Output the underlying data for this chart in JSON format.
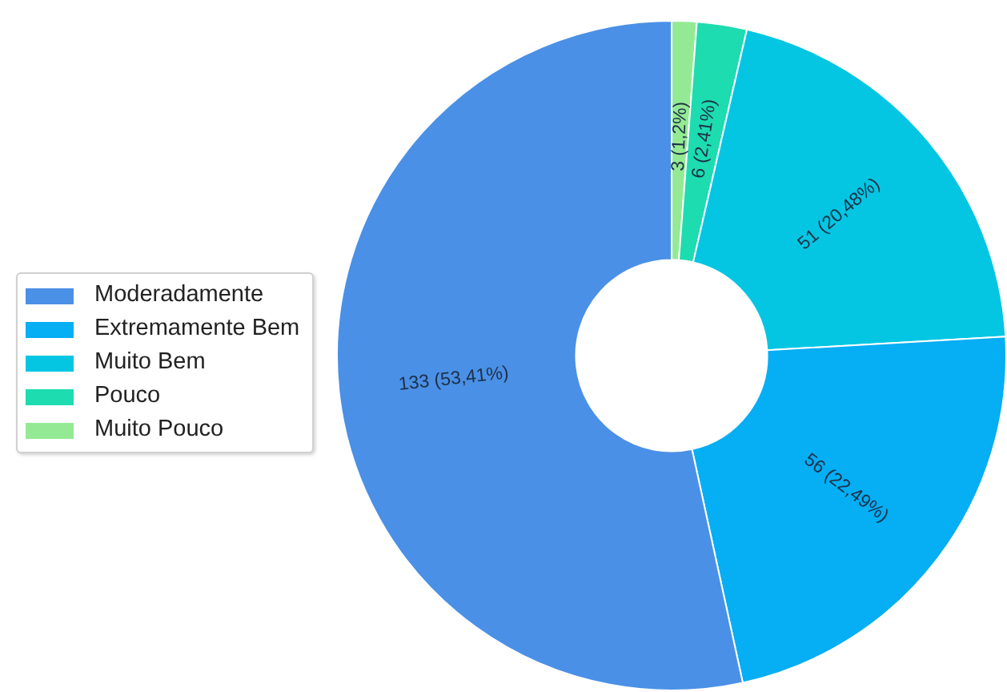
{
  "chart_data": {
    "type": "donut",
    "categories": [
      "Moderadamente",
      "Extremamente Bem",
      "Muito Bem",
      "Pouco",
      "Muito Pouco"
    ],
    "values": [
      133,
      56,
      51,
      6,
      3
    ],
    "colors": [
      "#4a90e6",
      "#06aef4",
      "#04c6e2",
      "#1ddcb0",
      "#94ea94"
    ],
    "value_labels": [
      "133 (53,41%)",
      "56 (22,49%)",
      "51 (20,48%)",
      "6 (2,41%)",
      "3 (1,2%)"
    ],
    "legend": "left"
  }
}
